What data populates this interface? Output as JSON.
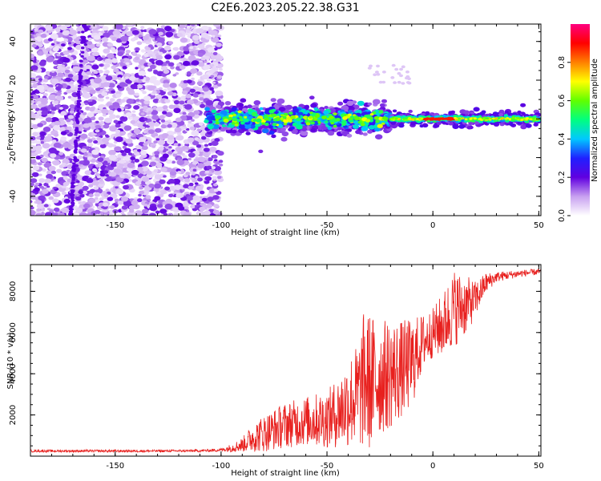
{
  "figure": {
    "title": "C2E6.2023.205.22.38.G31"
  },
  "chart_data": [
    {
      "type": "heatmap",
      "title": "C2E6.2023.205.22.38.G31",
      "xlabel": "Height of straight line (km)",
      "ylabel": "Frequency (Hz)",
      "xlim": [
        -190,
        51
      ],
      "ylim": [
        -50,
        49
      ],
      "xticks": [
        -150,
        -100,
        -50,
        0,
        50
      ],
      "yticks": [
        -40,
        -20,
        0,
        20,
        40
      ],
      "description_bands": [
        {
          "x_range": [
            -190,
            -100
          ],
          "freq_range": [
            -50,
            49
          ],
          "kind": "diffuse-noise"
        },
        {
          "x_range": [
            -107,
            -20
          ],
          "freq_center": 0,
          "freq_halfwidth": 7,
          "kind": "broad-signal"
        },
        {
          "x_range": [
            -20,
            50
          ],
          "freq_center": 0,
          "freq_halfwidth": 3,
          "kind": "narrow-signal"
        }
      ],
      "colorbar": {
        "label": "Normalized spectral amplitude",
        "range": [
          0.0,
          1.0
        ],
        "ticks": [
          0.0,
          0.2,
          0.4,
          0.6,
          0.8
        ],
        "colormap": [
          "#ffffff",
          "#c8a0f0",
          "#6000e0",
          "#2020ff",
          "#00c8ff",
          "#00ff80",
          "#60ff00",
          "#ffff00",
          "#ff8000",
          "#ff0000",
          "#ff0080"
        ]
      }
    },
    {
      "type": "line",
      "xlabel": "Height of straight line (km)",
      "ylabel": "SNR (10 * v/v)",
      "xlim": [
        -190,
        51
      ],
      "ylim": [
        0,
        9300
      ],
      "xticks": [
        -150,
        -100,
        -50,
        0,
        50
      ],
      "yticks": [
        2000,
        4000,
        6000,
        8000
      ],
      "color": "#e8201e",
      "series": [
        {
          "name": "SNR",
          "x": [
            -190,
            -160,
            -130,
            -110,
            -100,
            -95,
            -90,
            -85,
            -80,
            -70,
            -60,
            -50,
            -45,
            -40,
            -35,
            -32,
            -30,
            -25,
            -20,
            -15,
            -10,
            -5,
            0,
            5,
            10,
            15,
            20,
            25,
            30,
            40,
            50
          ],
          "mean": [
            250,
            250,
            250,
            260,
            300,
            400,
            550,
            900,
            1100,
            1500,
            1700,
            1800,
            2100,
            2600,
            3000,
            3800,
            3600,
            3800,
            4000,
            4200,
            4500,
            5500,
            6000,
            6400,
            7200,
            7300,
            7600,
            8400,
            8700,
            8850,
            8950
          ],
          "spread": [
            60,
            60,
            60,
            60,
            80,
            200,
            350,
            700,
            900,
            1100,
            1200,
            1400,
            1700,
            2200,
            2600,
            3600,
            3400,
            2800,
            2700,
            2400,
            2200,
            1400,
            1200,
            1600,
            1900,
            1500,
            900,
            500,
            250,
            180,
            150
          ]
        }
      ]
    }
  ]
}
